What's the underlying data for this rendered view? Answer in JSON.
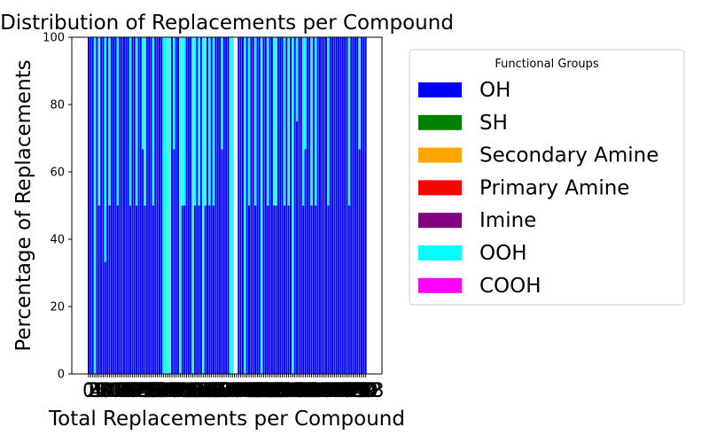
{
  "chart_data": {
    "type": "bar",
    "stacked": true,
    "title": "Distribution of Replacements per Compound",
    "xlabel": "Total Replacements per Compound",
    "ylabel": "Percentage of Replacements",
    "ylim": [
      0,
      100
    ],
    "yticks": [
      0,
      20,
      40,
      60,
      80,
      100
    ],
    "legend": {
      "title": "Functional Groups",
      "placement": "outside-right",
      "entries": [
        {
          "name": "OH",
          "color": "#0000ff"
        },
        {
          "name": "SH",
          "color": "#008000"
        },
        {
          "name": "Secondary Amine",
          "color": "#ffa500"
        },
        {
          "name": "Primary Amine",
          "color": "#ff0000"
        },
        {
          "name": "Imine",
          "color": "#800080"
        },
        {
          "name": "OOH",
          "color": "#00ffff"
        },
        {
          "name": "COOH",
          "color": "#ff00ff"
        }
      ]
    },
    "series": [
      {
        "name": "OH",
        "values": [
          100,
          100,
          100,
          0,
          100,
          50,
          100,
          100,
          33.3,
          100,
          50,
          100,
          100,
          100,
          50,
          100,
          100,
          100,
          100,
          100,
          50,
          100,
          100,
          50,
          100,
          100,
          66.7,
          50,
          100,
          100,
          100,
          50,
          100,
          100,
          100,
          100,
          0,
          0,
          0,
          0,
          100,
          66.7,
          100,
          100,
          0,
          50,
          50,
          100,
          100,
          100,
          0,
          50,
          100,
          50,
          100,
          0,
          50,
          100,
          50,
          100,
          50,
          100,
          100,
          100,
          66.7,
          100,
          100,
          100,
          0,
          0,
          0,
          0,
          100,
          100,
          100,
          0,
          100,
          50,
          100,
          100,
          50,
          100,
          100,
          0,
          100,
          100,
          50,
          100,
          100,
          50,
          50,
          100,
          100,
          100,
          50,
          100,
          50,
          100,
          0,
          100,
          75,
          100,
          100,
          50,
          66.7,
          100,
          100,
          50,
          100,
          50,
          100,
          100,
          100,
          100,
          100,
          50,
          100,
          100,
          100,
          100,
          100,
          100,
          100,
          100,
          100,
          50,
          100,
          100,
          100,
          100,
          66.7,
          100,
          100,
          100
        ]
      },
      {
        "name": "SH",
        "values": [
          0,
          0,
          0,
          0,
          0,
          0,
          0,
          0,
          0,
          0,
          0,
          0,
          0,
          0,
          0,
          0,
          0,
          0,
          0,
          0,
          0,
          0,
          0,
          0,
          0,
          0,
          0,
          0,
          0,
          0,
          0,
          0,
          0,
          0,
          0,
          0,
          0,
          0,
          0,
          0,
          0,
          0,
          0,
          0,
          0,
          0,
          0,
          0,
          0,
          0,
          0,
          0,
          0,
          0,
          0,
          0,
          0,
          0,
          0,
          0,
          0,
          0,
          0,
          0,
          0,
          0,
          0,
          0,
          0,
          0,
          0,
          0,
          0,
          0,
          0,
          0,
          0,
          0,
          0,
          0,
          0,
          0,
          0,
          0,
          0,
          0,
          0,
          0,
          0,
          0,
          0,
          0,
          0,
          0,
          0,
          0,
          0,
          0,
          0,
          0,
          0,
          0,
          0,
          0,
          0,
          0,
          0,
          0,
          0,
          0,
          0,
          0,
          0,
          0,
          0,
          0,
          0,
          0,
          0,
          0,
          0,
          0,
          0,
          0,
          0,
          0,
          0,
          0,
          0,
          0,
          0,
          0,
          0,
          0
        ]
      },
      {
        "name": "Secondary Amine",
        "values": [
          0,
          0,
          0,
          0,
          0,
          0,
          0,
          0,
          0,
          0,
          0,
          0,
          0,
          0,
          0,
          0,
          0,
          0,
          0,
          0,
          0,
          0,
          0,
          0,
          0,
          0,
          0,
          0,
          0,
          0,
          0,
          0,
          0,
          0,
          0,
          0,
          0,
          0,
          0,
          0,
          0,
          0,
          0,
          0,
          0,
          0,
          0,
          0,
          0,
          0,
          0,
          0,
          0,
          0,
          0,
          0,
          0,
          0,
          0,
          0,
          0,
          0,
          0,
          0,
          0,
          0,
          0,
          0,
          0,
          0,
          0,
          0,
          0,
          0,
          0,
          0,
          0,
          0,
          0,
          0,
          0,
          0,
          0,
          0,
          0,
          0,
          0,
          0,
          0,
          0,
          0,
          0,
          0,
          0,
          0,
          0,
          0,
          0,
          0,
          0,
          0,
          0,
          0,
          0,
          0,
          0,
          0,
          0,
          0,
          0,
          0,
          0,
          0,
          0,
          0,
          0,
          0,
          0,
          0,
          0,
          0,
          0,
          0,
          0,
          0,
          0,
          0,
          0,
          0,
          0,
          0,
          0,
          0,
          0
        ]
      },
      {
        "name": "Primary Amine",
        "values": [
          0,
          0,
          0,
          0,
          0,
          0,
          0,
          0,
          0,
          0,
          0,
          0,
          0,
          0,
          0,
          0,
          0,
          0,
          0,
          0,
          0,
          0,
          0,
          0,
          0,
          0,
          0,
          0,
          0,
          0,
          0,
          0,
          0,
          0,
          0,
          0,
          0,
          0,
          0,
          0,
          0,
          0,
          0,
          0,
          0,
          0,
          0,
          0,
          0,
          0,
          0,
          0,
          0,
          0,
          0,
          0,
          0,
          0,
          0,
          0,
          0,
          0,
          0,
          0,
          0,
          0,
          0,
          0,
          0,
          0,
          0,
          0,
          0,
          0,
          0,
          0,
          0,
          0,
          0,
          0,
          0,
          0,
          0,
          0,
          0,
          0,
          0,
          0,
          0,
          0,
          0,
          0,
          0,
          0,
          0,
          0,
          0,
          0,
          0,
          0,
          0,
          0,
          0,
          0,
          0,
          0,
          0,
          0,
          0,
          0,
          0,
          0,
          0,
          0,
          0,
          0,
          0,
          0,
          0,
          0,
          0,
          0,
          0,
          0,
          0,
          0,
          0,
          0,
          0,
          0,
          0,
          0,
          0,
          0
        ]
      },
      {
        "name": "Imine",
        "values": [
          0,
          0,
          0,
          0,
          0,
          0,
          0,
          0,
          0,
          0,
          0,
          0,
          0,
          0,
          0,
          0,
          0,
          0,
          0,
          0,
          0,
          0,
          0,
          0,
          0,
          0,
          0,
          0,
          0,
          0,
          0,
          0,
          0,
          0,
          0,
          0,
          0,
          0,
          0,
          0,
          0,
          0,
          0,
          0,
          0,
          0,
          0,
          0,
          0,
          0,
          0,
          0,
          0,
          0,
          0,
          0,
          0,
          0,
          0,
          0,
          0,
          0,
          0,
          0,
          0,
          0,
          0,
          0,
          0,
          0,
          0,
          0,
          0,
          0,
          0,
          0,
          0,
          0,
          0,
          0,
          0,
          0,
          0,
          0,
          0,
          0,
          0,
          0,
          0,
          0,
          0,
          0,
          0,
          0,
          0,
          0,
          0,
          0,
          0,
          0,
          0,
          0,
          0,
          0,
          0,
          0,
          0,
          0,
          0,
          0,
          0,
          0,
          0,
          0,
          0,
          0,
          0,
          0,
          0,
          0,
          0,
          0,
          0,
          0,
          0,
          0,
          0,
          0,
          0,
          0,
          0,
          0,
          0,
          0
        ]
      },
      {
        "name": "OOH",
        "values": [
          0,
          0,
          0,
          100,
          0,
          50,
          0,
          0,
          66.7,
          0,
          50,
          0,
          0,
          0,
          50,
          0,
          0,
          0,
          0,
          0,
          50,
          0,
          0,
          50,
          0,
          0,
          33.3,
          50,
          0,
          0,
          0,
          50,
          0,
          0,
          0,
          0,
          100,
          100,
          100,
          100,
          0,
          33.3,
          0,
          0,
          100,
          50,
          50,
          0,
          0,
          0,
          100,
          50,
          0,
          50,
          0,
          100,
          50,
          0,
          50,
          0,
          50,
          0,
          0,
          0,
          33.3,
          0,
          0,
          0,
          100,
          100,
          100,
          100,
          0,
          0,
          0,
          100,
          0,
          50,
          0,
          0,
          50,
          0,
          0,
          100,
          0,
          0,
          50,
          0,
          0,
          50,
          50,
          0,
          0,
          0,
          50,
          0,
          50,
          0,
          100,
          0,
          25,
          0,
          0,
          50,
          33.3,
          0,
          0,
          50,
          0,
          50,
          0,
          0,
          0,
          0,
          0,
          50,
          0,
          0,
          0,
          0,
          0,
          0,
          0,
          0,
          0,
          50,
          0,
          0,
          0,
          0,
          33.3,
          0,
          0,
          0
        ]
      },
      {
        "name": "COOH",
        "values": [
          0,
          0,
          0,
          0,
          0,
          0,
          0,
          0,
          0,
          0,
          0,
          0,
          0,
          0,
          0,
          0,
          0,
          0,
          0,
          0,
          0,
          0,
          0,
          0,
          0,
          0,
          0,
          0,
          0,
          0,
          0,
          0,
          0,
          0,
          0,
          0,
          0,
          0,
          0,
          0,
          0,
          0,
          0,
          0,
          0,
          0,
          0,
          0,
          0,
          0,
          0,
          0,
          0,
          0,
          0,
          0,
          0,
          0,
          0,
          0,
          0,
          0,
          0,
          0,
          0,
          0,
          0,
          0,
          0,
          0,
          0,
          0,
          0,
          0,
          0,
          0,
          0,
          0,
          0,
          0,
          0,
          0,
          0,
          0,
          0,
          0,
          0,
          0,
          0,
          0,
          0,
          0,
          0,
          0,
          0,
          0,
          0,
          0,
          0,
          0,
          0,
          0,
          0,
          0,
          0,
          0,
          0,
          0,
          0,
          0,
          0,
          0,
          0,
          0,
          0,
          0,
          0,
          0,
          0,
          0,
          0,
          0,
          0,
          0,
          0,
          0,
          0,
          0,
          0,
          0,
          0,
          0,
          0,
          0
        ]
      }
    ],
    "gaps_at_indices": [
      70,
      71
    ]
  }
}
